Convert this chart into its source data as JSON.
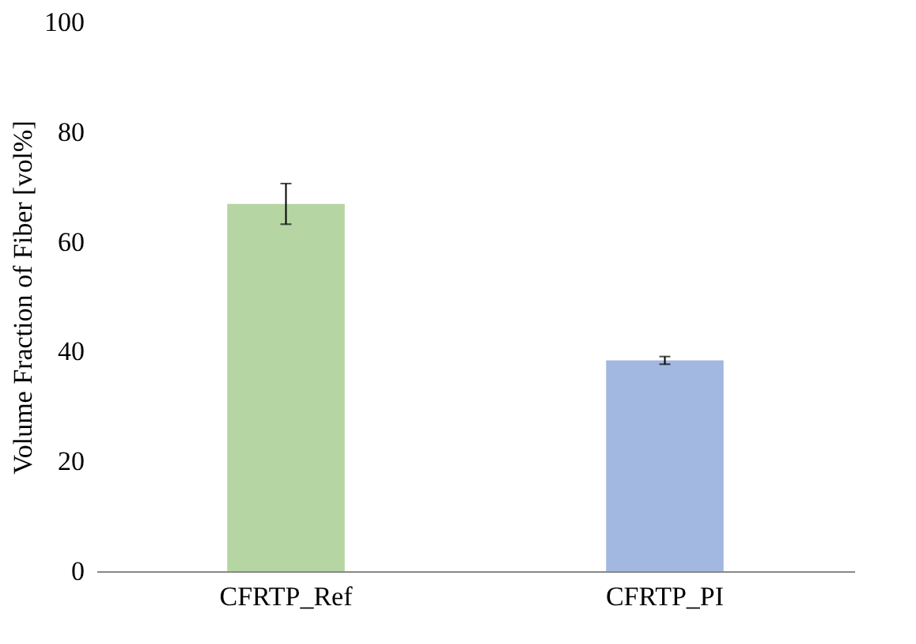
{
  "chart_data": {
    "type": "bar",
    "ylabel": "Volume Fraction of Fiber [vol%]",
    "categories": [
      "CFRTP_Ref",
      "CFRTP_PI"
    ],
    "values": [
      66.9,
      38.4
    ],
    "colors": [
      "#b5d5a3",
      "#a2b8e0"
    ],
    "errors": [
      3.7,
      0.7
    ],
    "ylim": [
      0,
      100
    ],
    "yticks": [
      0,
      20,
      40,
      60,
      80,
      100
    ],
    "grid": false
  }
}
